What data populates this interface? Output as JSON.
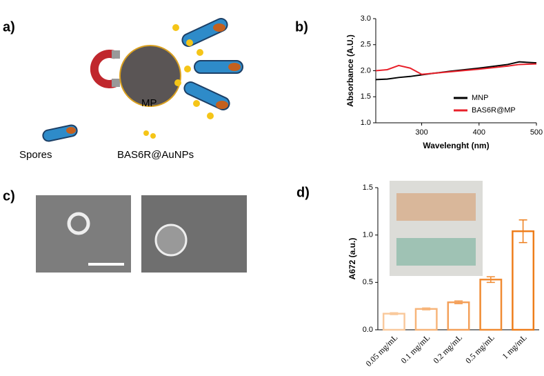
{
  "panels": [
    "a)",
    "b)",
    "c)",
    "d)"
  ],
  "diagram": {
    "mp_label": "MP",
    "spores_label": "Spores",
    "nanoparticle_label": "BAS6R@AuNPs"
  },
  "chart_data": [
    {
      "type": "line",
      "xlabel": "Wavelenght (nm)",
      "ylabel": "Absorbance (A.U.)",
      "x": [
        220,
        240,
        260,
        280,
        300,
        320,
        350,
        400,
        450,
        470,
        500
      ],
      "series": [
        {
          "name": "MNP",
          "color": "#000000",
          "values": [
            1.83,
            1.84,
            1.87,
            1.89,
            1.92,
            1.95,
            1.99,
            2.05,
            2.12,
            2.17,
            2.15
          ]
        },
        {
          "name": "BAS6R@MP",
          "color": "#e8202a",
          "values": [
            2.0,
            2.02,
            2.1,
            2.05,
            1.93,
            1.95,
            1.98,
            2.03,
            2.09,
            2.12,
            2.13
          ]
        }
      ],
      "xlim": [
        220,
        500
      ],
      "xticks": [
        300,
        400,
        500
      ],
      "ylim": [
        1.0,
        3.0
      ],
      "yticks": [
        {
          "value": 1.0,
          "label": "1.0"
        },
        1.5,
        {
          "value": 2.0,
          "label": "2.0"
        },
        2.5,
        {
          "value": 3.0,
          "label": "3.0"
        }
      ],
      "legend": "lower-right"
    },
    {
      "type": "bar",
      "ylabel": "A672 (a.u.)",
      "categories": [
        "0.05 mg/mL",
        "0.1 mg/mL",
        "0.2 mg/mL",
        "0.5 mg/mL",
        "1 mg/mL"
      ],
      "values": [
        0.17,
        0.22,
        0.29,
        0.53,
        1.04
      ],
      "errors": [
        0.01,
        0.01,
        0.015,
        0.03,
        0.12
      ],
      "colors": [
        "#f9c99c",
        "#f7b57a",
        "#f4a05a",
        "#f08b32",
        "#ee7d1a"
      ],
      "ylim": [
        0,
        1.5
      ],
      "yticks": [
        {
          "value": 0,
          "label": "0.0"
        },
        0.5,
        {
          "value": 1,
          "label": "1.0"
        },
        1.5
      ]
    }
  ]
}
